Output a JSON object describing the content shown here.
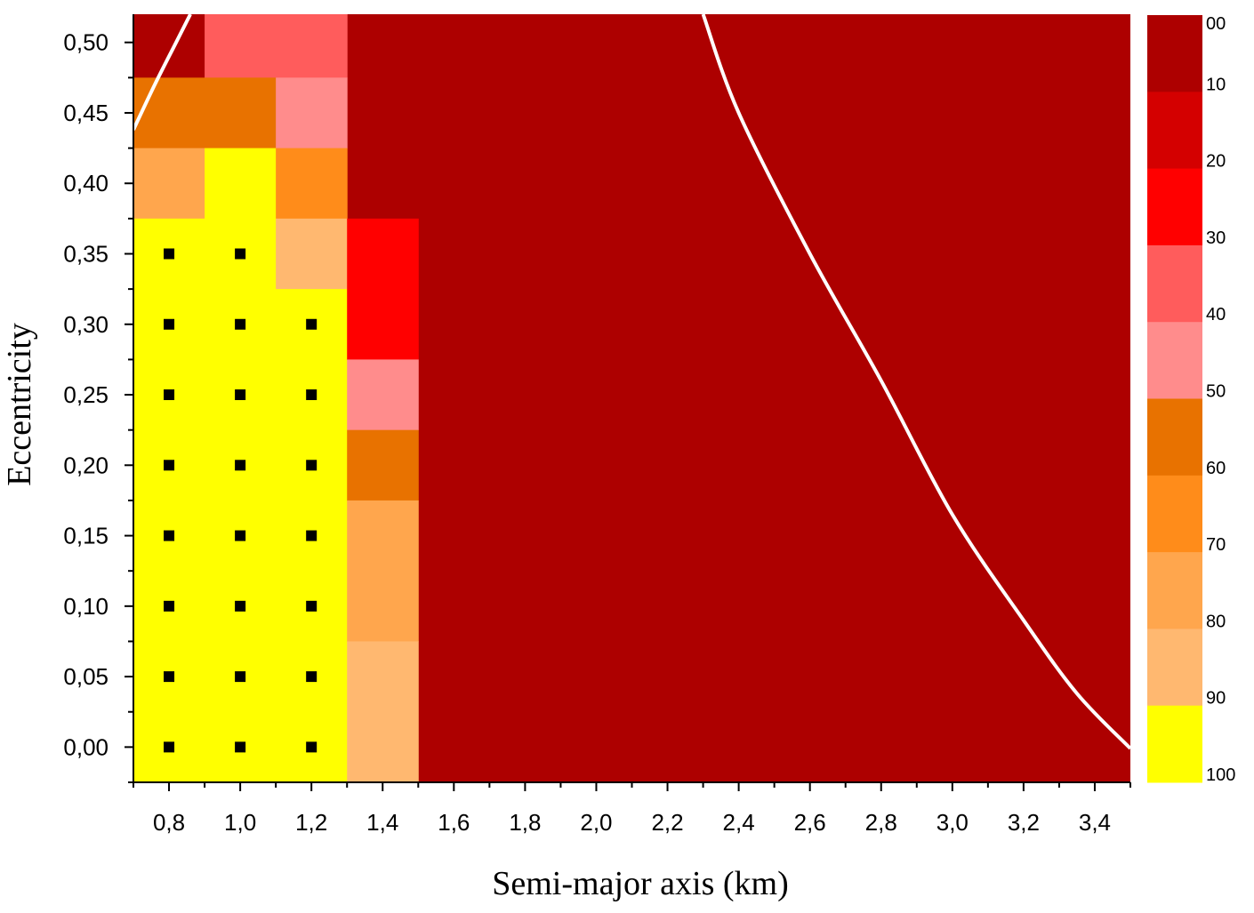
{
  "chart_data": {
    "type": "heatmap",
    "title": "",
    "xlabel": "Semi-major axis (km)",
    "ylabel": "Eccentricity",
    "xlim": [
      0.7,
      3.5
    ],
    "ylim": [
      -0.025,
      0.52
    ],
    "x_ticks": [
      "0,8",
      "1,0",
      "1,2",
      "1,4",
      "1,6",
      "1,8",
      "2,0",
      "2,2",
      "2,4",
      "2,6",
      "2,8",
      "3,0",
      "3,2",
      "3,4"
    ],
    "x_tick_values": [
      0.8,
      1.0,
      1.2,
      1.4,
      1.6,
      1.8,
      2.0,
      2.2,
      2.4,
      2.6,
      2.8,
      3.0,
      3.2,
      3.4
    ],
    "y_ticks": [
      "0,00",
      "0,05",
      "0,10",
      "0,15",
      "0,20",
      "0,25",
      "0,30",
      "0,35",
      "0,40",
      "0,45",
      "0,50"
    ],
    "y_tick_values": [
      0.0,
      0.05,
      0.1,
      0.15,
      0.2,
      0.25,
      0.3,
      0.35,
      0.4,
      0.45,
      0.5
    ],
    "background_value": 5,
    "cells": [
      {
        "a0": 0.7,
        "a1": 0.9,
        "e0": 0.475,
        "e1": 0.52,
        "value": 5
      },
      {
        "a0": 0.9,
        "a1": 1.3,
        "e0": 0.475,
        "e1": 0.52,
        "value": 35
      },
      {
        "a0": 0.7,
        "a1": 1.1,
        "e0": 0.425,
        "e1": 0.475,
        "value": 55
      },
      {
        "a0": 1.1,
        "a1": 1.3,
        "e0": 0.425,
        "e1": 0.475,
        "value": 45
      },
      {
        "a0": 0.7,
        "a1": 0.9,
        "e0": 0.375,
        "e1": 0.425,
        "value": 75
      },
      {
        "a0": 0.9,
        "a1": 1.1,
        "e0": 0.375,
        "e1": 0.425,
        "value": 95
      },
      {
        "a0": 1.1,
        "a1": 1.3,
        "e0": 0.375,
        "e1": 0.425,
        "value": 65
      },
      {
        "a0": 0.7,
        "a1": 1.1,
        "e0": -0.025,
        "e1": 0.375,
        "value": 95
      },
      {
        "a0": 1.1,
        "a1": 1.3,
        "e0": 0.325,
        "e1": 0.375,
        "value": 85
      },
      {
        "a0": 1.1,
        "a1": 1.3,
        "e0": -0.025,
        "e1": 0.325,
        "value": 95
      },
      {
        "a0": 1.3,
        "a1": 1.5,
        "e0": 0.275,
        "e1": 0.375,
        "value": 25
      },
      {
        "a0": 1.3,
        "a1": 1.5,
        "e0": 0.225,
        "e1": 0.275,
        "value": 45
      },
      {
        "a0": 1.3,
        "a1": 1.5,
        "e0": 0.175,
        "e1": 0.225,
        "value": 55
      },
      {
        "a0": 1.3,
        "a1": 1.5,
        "e0": 0.075,
        "e1": 0.175,
        "value": 75
      },
      {
        "a0": 1.3,
        "a1": 1.5,
        "e0": -0.025,
        "e1": 0.075,
        "value": 85
      }
    ],
    "markers": [
      {
        "a": 0.8,
        "e": 0.35
      },
      {
        "a": 1.0,
        "e": 0.35
      },
      {
        "a": 0.8,
        "e": 0.3
      },
      {
        "a": 1.0,
        "e": 0.3
      },
      {
        "a": 1.2,
        "e": 0.3
      },
      {
        "a": 0.8,
        "e": 0.25
      },
      {
        "a": 1.0,
        "e": 0.25
      },
      {
        "a": 1.2,
        "e": 0.25
      },
      {
        "a": 0.8,
        "e": 0.2
      },
      {
        "a": 1.0,
        "e": 0.2
      },
      {
        "a": 1.2,
        "e": 0.2
      },
      {
        "a": 0.8,
        "e": 0.15
      },
      {
        "a": 1.0,
        "e": 0.15
      },
      {
        "a": 1.2,
        "e": 0.15
      },
      {
        "a": 0.8,
        "e": 0.1
      },
      {
        "a": 1.0,
        "e": 0.1
      },
      {
        "a": 1.2,
        "e": 0.1
      },
      {
        "a": 0.8,
        "e": 0.05
      },
      {
        "a": 1.0,
        "e": 0.05
      },
      {
        "a": 1.2,
        "e": 0.05
      },
      {
        "a": 0.8,
        "e": 0.0
      },
      {
        "a": 1.0,
        "e": 0.0
      },
      {
        "a": 1.2,
        "e": 0.0
      }
    ],
    "boundary_curves": [
      {
        "points": [
          [
            0.7,
            0.438
          ],
          [
            0.76,
            0.47
          ],
          [
            0.82,
            0.5
          ],
          [
            0.86,
            0.52
          ]
        ]
      },
      {
        "points": [
          [
            2.3,
            0.52
          ],
          [
            2.4,
            0.45
          ],
          [
            2.6,
            0.35
          ],
          [
            2.8,
            0.26
          ],
          [
            3.0,
            0.165
          ],
          [
            3.2,
            0.09
          ],
          [
            3.35,
            0.038
          ],
          [
            3.5,
            -0.001
          ]
        ]
      }
    ],
    "colorbar": {
      "labels": [
        "00",
        "10",
        "20",
        "30",
        "40",
        "50",
        "60",
        "70",
        "80",
        "90",
        "100"
      ],
      "bins": [
        {
          "min": 0,
          "max": 10,
          "color": "#ad0000"
        },
        {
          "min": 10,
          "max": 20,
          "color": "#d40000"
        },
        {
          "min": 20,
          "max": 30,
          "color": "#ff0000"
        },
        {
          "min": 30,
          "max": 40,
          "color": "#ff5c5c"
        },
        {
          "min": 40,
          "max": 50,
          "color": "#ff8c8c"
        },
        {
          "min": 50,
          "max": 60,
          "color": "#e87200"
        },
        {
          "min": 60,
          "max": 70,
          "color": "#ff8c1a"
        },
        {
          "min": 70,
          "max": 80,
          "color": "#ffa64d"
        },
        {
          "min": 80,
          "max": 90,
          "color": "#ffb870"
        },
        {
          "min": 90,
          "max": 100,
          "color": "#ffff00"
        }
      ]
    }
  }
}
